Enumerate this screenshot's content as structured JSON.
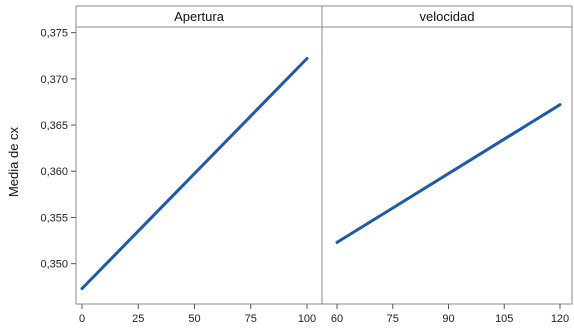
{
  "chart_data": {
    "type": "line",
    "ylabel": "Media de cx",
    "ylim": [
      0.3465,
      0.3755
    ],
    "yticks": [
      {
        "value": 0.35,
        "label": "0,350"
      },
      {
        "value": 0.355,
        "label": "0,355"
      },
      {
        "value": 0.36,
        "label": "0,360"
      },
      {
        "value": 0.365,
        "label": "0,365"
      },
      {
        "value": 0.37,
        "label": "0,370"
      },
      {
        "value": 0.375,
        "label": "0,375"
      }
    ],
    "grid": false,
    "line_color": "#1f5aa6",
    "panels": [
      {
        "title": "Apertura",
        "xlim": [
          0,
          100
        ],
        "xticks": [
          {
            "value": 0,
            "label": "0"
          },
          {
            "value": 25,
            "label": "25"
          },
          {
            "value": 50,
            "label": "50"
          },
          {
            "value": 75,
            "label": "75"
          },
          {
            "value": 100,
            "label": "100"
          }
        ],
        "points": [
          [
            0,
            0.3473
          ],
          [
            100,
            0.3722
          ]
        ]
      },
      {
        "title": "velocidad",
        "xlim": [
          60,
          120
        ],
        "xticks": [
          {
            "value": 60,
            "label": "60"
          },
          {
            "value": 75,
            "label": "75"
          },
          {
            "value": 90,
            "label": "90"
          },
          {
            "value": 105,
            "label": "105"
          },
          {
            "value": 120,
            "label": "120"
          }
        ],
        "points": [
          [
            60,
            0.3523
          ],
          [
            120,
            0.3672
          ]
        ]
      }
    ]
  }
}
